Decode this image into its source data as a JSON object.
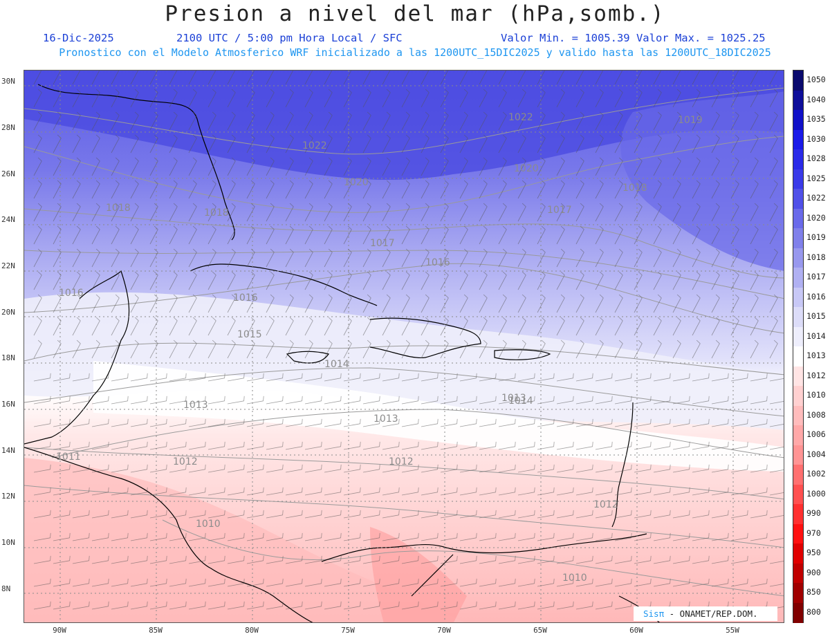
{
  "title": "Presion a nivel del mar (hPa,somb.)",
  "subtitle": {
    "date": "16-Dic-2025",
    "time": "2100 UTC / 5:00 pm Hora Local / SFC",
    "range": "Valor Min. = 1005.39  Valor Max. = 1025.25",
    "run": "Pronostico con el Modelo Atmosferico WRF inicializado a las 1200UTC_15DIC2025 y valido hasta las  1200UTC_18DIC2025"
  },
  "map": {
    "lat_labels": [
      "30N",
      "28N",
      "26N",
      "24N",
      "22N",
      "20N",
      "18N",
      "16N",
      "14N",
      "12N",
      "10N",
      "8N"
    ],
    "lon_labels": [
      "90W",
      "85W",
      "80W",
      "75W",
      "70W",
      "65W",
      "60W",
      "55W"
    ],
    "contour_labels": [
      {
        "text": "1022"
      },
      {
        "text": "1022"
      },
      {
        "text": "1020"
      },
      {
        "text": "1020"
      },
      {
        "text": "1019"
      },
      {
        "text": "1018"
      },
      {
        "text": "1018"
      },
      {
        "text": "1018"
      },
      {
        "text": "1017"
      },
      {
        "text": "1017"
      },
      {
        "text": "1016"
      },
      {
        "text": "1016"
      },
      {
        "text": "1016"
      },
      {
        "text": "1015"
      },
      {
        "text": "1014"
      },
      {
        "text": "1014"
      },
      {
        "text": "1013"
      },
      {
        "text": "1013"
      },
      {
        "text": "1013"
      },
      {
        "text": "1012"
      },
      {
        "text": "1012"
      },
      {
        "text": "1012"
      },
      {
        "text": "1011"
      },
      {
        "text": "1010"
      },
      {
        "text": "1010"
      }
    ]
  },
  "colorbar": {
    "levels": [
      "1050",
      "1040",
      "1035",
      "1030",
      "1028",
      "1025",
      "1022",
      "1020",
      "1019",
      "1018",
      "1017",
      "1016",
      "1015",
      "1014",
      "1013",
      "1012",
      "1010",
      "1008",
      "1006",
      "1004",
      "1002",
      "1000",
      "990",
      "970",
      "950",
      "900",
      "850",
      "800"
    ],
    "colors": [
      "#0a0a6e",
      "#0e0e9a",
      "#1010c8",
      "#1a1ae8",
      "#2a2ae8",
      "#3a3ae8",
      "#5050e8",
      "#6a6aea",
      "#8080ea",
      "#9898ee",
      "#b0b0f2",
      "#c8c8f6",
      "#dcdcf8",
      "#eeeefc",
      "#ffffff",
      "#ffe4e4",
      "#ffd0d0",
      "#ffbcbc",
      "#ffa8a8",
      "#ff9494",
      "#ff7070",
      "#ff5050",
      "#ff3030",
      "#ff1010",
      "#e00000",
      "#c00000",
      "#a00000",
      "#800000"
    ]
  },
  "credit": {
    "brand": "Sisπ",
    "org": " - ONAMET/REP.DOM."
  }
}
